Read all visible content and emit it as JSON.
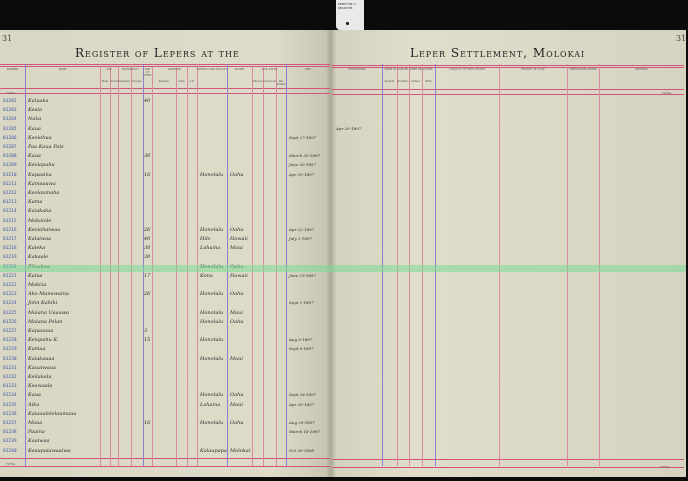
{
  "tag_label": "DIRECTOR'S REGISTER",
  "page_number_left": "31",
  "page_number_right": "31",
  "title_left": "Register of Lepers at the",
  "title_right": "Leper Settlement, Molokai",
  "headers_left": [
    "NUMBER",
    "NAME",
    "SEX",
    "NATIONALITY",
    "AGE AT ENTRY",
    "ADMITTED",
    "DISTRICT OR LOCALITY",
    "ISLAND",
    "CIVIL STATE",
    "DIED"
  ],
  "subheaders_left": [
    "Male",
    "Female",
    "Hawaiian",
    "Foreign",
    "Number",
    "Date",
    "A.D.",
    "Married",
    "Unmarried",
    "Not Stated"
  ],
  "headers_right": [
    "DISCHARGED",
    "NAME OF EARLIER LEPER RELATIONS",
    "LOCALITY OF FIRST LESION",
    "HISTORY OF CASE",
    "LEPROUS RELATIONS",
    "REMARKS"
  ],
  "subheaders_right": [
    "Parents",
    "Brothers",
    "Sisters",
    "Other"
  ],
  "total_label": "TOTAL",
  "colors": {
    "rule_red": "#d2557a",
    "rule_purple": "#8a7fd0",
    "number_ink": "#3b57a8",
    "scan_band": "#78dc96"
  },
  "rows": [
    {
      "number": "01202",
      "name": "Kaluaka",
      "age": "40",
      "died": ""
    },
    {
      "number": "01203",
      "name": "Keala",
      "age": "",
      "died": ""
    },
    {
      "number": "01204",
      "name": "Naka",
      "age": "",
      "died": ""
    },
    {
      "number": "01205",
      "name": "Kaua",
      "age": "",
      "died": "",
      "discharged": "Apr 20-1897"
    },
    {
      "number": "01206",
      "name": "Keolahua",
      "age": "",
      "died": "Sept 27-1897"
    },
    {
      "number": "01207",
      "name": "Paa Kaua Pale",
      "age": "",
      "died": ""
    },
    {
      "number": "01208",
      "name": "Kaua",
      "age": "36",
      "died": "March 30-1897"
    },
    {
      "number": "01209",
      "name": "Keolapahu",
      "age": "",
      "died": "June 30-1897"
    },
    {
      "number": "01210",
      "name": "Kapaaina",
      "age": "16",
      "district": "Honolulu",
      "island": "Oahu",
      "died": "Apr 20-1897"
    },
    {
      "number": "01211",
      "name": "Kamaauwa",
      "age": "",
      "died": ""
    },
    {
      "number": "01212",
      "name": "Keolaumaha",
      "age": "",
      "died": ""
    },
    {
      "number": "01213",
      "name": "Kama",
      "age": "",
      "died": ""
    },
    {
      "number": "01214",
      "name": "Kaiakaka",
      "age": "",
      "died": ""
    },
    {
      "number": "01215",
      "name": "Makaiole",
      "age": "",
      "died": ""
    },
    {
      "number": "01216",
      "name": "Keolahaiwaa",
      "age": "26",
      "district": "Honolulu",
      "island": "Oahu",
      "died": "Apr 22-1897"
    },
    {
      "number": "01217",
      "name": "Kalaiwaa",
      "age": "40",
      "district": "Hilo",
      "island": "Hawaii",
      "died": "July 2-1897"
    },
    {
      "number": "01218",
      "name": "Kaleka",
      "age": "30",
      "district": "Lahaina",
      "island": "Maui",
      "died": ""
    },
    {
      "number": "01219",
      "name": "Kakaale",
      "age": "30",
      "died": ""
    },
    {
      "number": "01220",
      "name": "Pilaukea",
      "age": "",
      "district": "Honolulu",
      "island": "Oahu",
      "died": ""
    },
    {
      "number": "01221",
      "name": "Kalua",
      "age": "17",
      "district": "Kona",
      "island": "Hawaii",
      "died": "June 29-1897"
    },
    {
      "number": "01222",
      "name": "Makiza",
      "age": "",
      "died": ""
    },
    {
      "number": "01223",
      "name": "Ako Manuwaina",
      "age": "26",
      "district": "Honolulu",
      "island": "Oahu",
      "died": ""
    },
    {
      "number": "01224",
      "name": "John Kahiki",
      "age": "",
      "died": "Sept 2-1897"
    },
    {
      "number": "01225",
      "name": "Maiana Uaauwa",
      "age": "",
      "district": "Honolulu",
      "island": "Maui",
      "died": ""
    },
    {
      "number": "01226",
      "name": "Maiana Pelan",
      "age": "",
      "district": "Honolulu",
      "island": "Oahu",
      "died": ""
    },
    {
      "number": "01227",
      "name": "Kapaauua",
      "age": "3",
      "died": ""
    },
    {
      "number": "01228",
      "name": "Kelapahu K.",
      "age": "15",
      "district": "Honolulu",
      "died": "Aug 9-1897"
    },
    {
      "number": "01229",
      "name": "Kamaa",
      "age": "",
      "died": "Sept 9-1897"
    },
    {
      "number": "01230",
      "name": "Kaiakauaa",
      "age": "",
      "district": "Honolulu",
      "island": "Maui",
      "died": ""
    },
    {
      "number": "01231",
      "name": "Kauaiwaua",
      "age": "",
      "died": ""
    },
    {
      "number": "01232",
      "name": "Keilakalu",
      "age": "",
      "died": ""
    },
    {
      "number": "01233",
      "name": "Keawaala",
      "age": "",
      "died": ""
    },
    {
      "number": "01234",
      "name": "Kaua",
      "age": "",
      "district": "Honolulu",
      "island": "Oahu",
      "died": "Sept 28-1897"
    },
    {
      "number": "01235",
      "name": "Aika",
      "age": "",
      "district": "Lahaina",
      "island": "Maui",
      "died": "Apr 26-1897"
    },
    {
      "number": "01236",
      "name": "Kaiaualelelaumaua",
      "age": "",
      "died": ""
    },
    {
      "number": "01237",
      "name": "Maua",
      "age": "16",
      "district": "Honolulu",
      "island": "Oahu",
      "died": "Aug 20-1897"
    },
    {
      "number": "01238",
      "name": "Paaina",
      "age": "",
      "died": "March 18-1897"
    },
    {
      "number": "01239",
      "name": "Kaaiwaa",
      "age": "",
      "died": ""
    },
    {
      "number": "01240",
      "name": "Keaupaiawaaiwa",
      "age": "",
      "district": "Kalaupapa",
      "island": "Molokai",
      "died": "Oct 30-1898"
    }
  ]
}
